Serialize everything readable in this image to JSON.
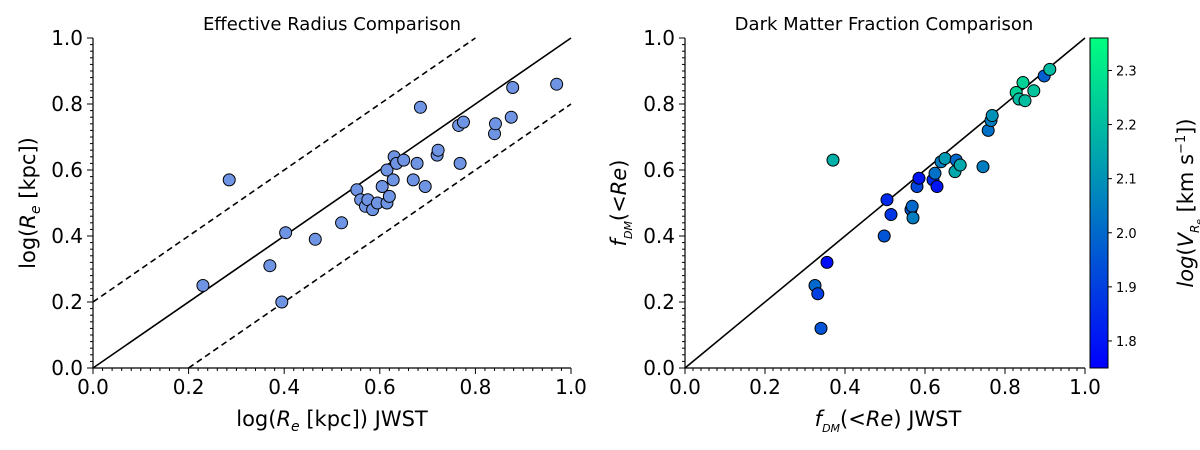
{
  "chart_data": [
    {
      "type": "scatter",
      "title": "Effective Radius Comparison",
      "xlabel": "log(R_e [kpc]) JWST",
      "ylabel": "log(R_e [kpc])",
      "xlim": [
        0.0,
        1.0
      ],
      "ylim": [
        0.0,
        1.0
      ],
      "xticks": [
        "0.0",
        "0.2",
        "0.4",
        "0.6",
        "0.8",
        "1.0"
      ],
      "yticks": [
        "0.0",
        "0.2",
        "0.4",
        "0.6",
        "0.8",
        "1.0"
      ],
      "marker_color": "#6f94e3",
      "lines": [
        {
          "name": "one-to-one",
          "style": "solid",
          "x": [
            0.0,
            1.0
          ],
          "y": [
            0.0,
            1.0
          ]
        },
        {
          "name": "upper-offset",
          "style": "dashed",
          "x": [
            0.0,
            0.8
          ],
          "y": [
            0.2,
            1.0
          ]
        },
        {
          "name": "lower-offset",
          "style": "dashed",
          "x": [
            0.2,
            1.0
          ],
          "y": [
            0.0,
            0.8
          ]
        }
      ],
      "points": [
        {
          "x": 0.23,
          "y": 0.25
        },
        {
          "x": 0.285,
          "y": 0.57
        },
        {
          "x": 0.37,
          "y": 0.31
        },
        {
          "x": 0.395,
          "y": 0.2
        },
        {
          "x": 0.403,
          "y": 0.41
        },
        {
          "x": 0.465,
          "y": 0.39
        },
        {
          "x": 0.52,
          "y": 0.44
        },
        {
          "x": 0.552,
          "y": 0.54
        },
        {
          "x": 0.56,
          "y": 0.51
        },
        {
          "x": 0.57,
          "y": 0.49
        },
        {
          "x": 0.575,
          "y": 0.51
        },
        {
          "x": 0.585,
          "y": 0.48
        },
        {
          "x": 0.595,
          "y": 0.5
        },
        {
          "x": 0.605,
          "y": 0.55
        },
        {
          "x": 0.615,
          "y": 0.5
        },
        {
          "x": 0.615,
          "y": 0.6
        },
        {
          "x": 0.62,
          "y": 0.52
        },
        {
          "x": 0.628,
          "y": 0.57
        },
        {
          "x": 0.63,
          "y": 0.64
        },
        {
          "x": 0.635,
          "y": 0.62
        },
        {
          "x": 0.65,
          "y": 0.63
        },
        {
          "x": 0.67,
          "y": 0.57
        },
        {
          "x": 0.678,
          "y": 0.62
        },
        {
          "x": 0.685,
          "y": 0.79
        },
        {
          "x": 0.695,
          "y": 0.55
        },
        {
          "x": 0.72,
          "y": 0.645
        },
        {
          "x": 0.722,
          "y": 0.66
        },
        {
          "x": 0.765,
          "y": 0.735
        },
        {
          "x": 0.768,
          "y": 0.62
        },
        {
          "x": 0.775,
          "y": 0.745
        },
        {
          "x": 0.84,
          "y": 0.71
        },
        {
          "x": 0.842,
          "y": 0.74
        },
        {
          "x": 0.875,
          "y": 0.76
        },
        {
          "x": 0.878,
          "y": 0.85
        },
        {
          "x": 0.97,
          "y": 0.86
        }
      ]
    },
    {
      "type": "scatter",
      "title": "Dark Matter Fraction Comparison",
      "xlabel": "f_DM(<Re) JWST",
      "ylabel": "f_DM(<Re)",
      "xlim": [
        0.0,
        1.0
      ],
      "ylim": [
        0.0,
        1.0
      ],
      "xticks": [
        "0.0",
        "0.2",
        "0.4",
        "0.6",
        "0.8",
        "1.0"
      ],
      "yticks": [
        "0.0",
        "0.2",
        "0.4",
        "0.6",
        "0.8",
        "1.0"
      ],
      "lines": [
        {
          "name": "one-to-one",
          "style": "solid",
          "x": [
            0.0,
            1.0
          ],
          "y": [
            0.0,
            1.0
          ]
        }
      ],
      "colorbar": {
        "label": "log(V_Re [km s^-1])",
        "range": [
          1.75,
          2.36
        ],
        "ticks": [
          "1.8",
          "1.9",
          "2.0",
          "2.1",
          "2.2",
          "2.3"
        ],
        "colormap": "winter",
        "colors": [
          "#0000ff",
          "#00ff80"
        ]
      },
      "points": [
        {
          "x": 0.325,
          "y": 0.25,
          "c": 2.0
        },
        {
          "x": 0.332,
          "y": 0.225,
          "c": 1.9
        },
        {
          "x": 0.34,
          "y": 0.12,
          "c": 1.95
        },
        {
          "x": 0.355,
          "y": 0.32,
          "c": 1.78
        },
        {
          "x": 0.37,
          "y": 0.63,
          "c": 2.17
        },
        {
          "x": 0.498,
          "y": 0.4,
          "c": 1.95
        },
        {
          "x": 0.505,
          "y": 0.51,
          "c": 1.85
        },
        {
          "x": 0.515,
          "y": 0.465,
          "c": 1.88
        },
        {
          "x": 0.565,
          "y": 0.48,
          "c": 1.95
        },
        {
          "x": 0.568,
          "y": 0.49,
          "c": 2.0
        },
        {
          "x": 0.57,
          "y": 0.455,
          "c": 2.05
        },
        {
          "x": 0.58,
          "y": 0.55,
          "c": 1.92
        },
        {
          "x": 0.585,
          "y": 0.575,
          "c": 1.8
        },
        {
          "x": 0.62,
          "y": 0.57,
          "c": 1.85
        },
        {
          "x": 0.625,
          "y": 0.59,
          "c": 2.02
        },
        {
          "x": 0.63,
          "y": 0.55,
          "c": 1.8
        },
        {
          "x": 0.64,
          "y": 0.625,
          "c": 2.05
        },
        {
          "x": 0.65,
          "y": 0.635,
          "c": 2.12
        },
        {
          "x": 0.675,
          "y": 0.595,
          "c": 2.15
        },
        {
          "x": 0.678,
          "y": 0.63,
          "c": 2.0
        },
        {
          "x": 0.688,
          "y": 0.615,
          "c": 2.15
        },
        {
          "x": 0.745,
          "y": 0.61,
          "c": 2.05
        },
        {
          "x": 0.758,
          "y": 0.72,
          "c": 2.02
        },
        {
          "x": 0.765,
          "y": 0.75,
          "c": 2.05
        },
        {
          "x": 0.768,
          "y": 0.765,
          "c": 2.1
        },
        {
          "x": 0.828,
          "y": 0.835,
          "c": 2.25
        },
        {
          "x": 0.835,
          "y": 0.815,
          "c": 2.2
        },
        {
          "x": 0.845,
          "y": 0.865,
          "c": 2.25
        },
        {
          "x": 0.85,
          "y": 0.81,
          "c": 2.2
        },
        {
          "x": 0.872,
          "y": 0.84,
          "c": 2.22
        },
        {
          "x": 0.898,
          "y": 0.885,
          "c": 1.98
        },
        {
          "x": 0.912,
          "y": 0.905,
          "c": 2.2
        }
      ]
    }
  ]
}
